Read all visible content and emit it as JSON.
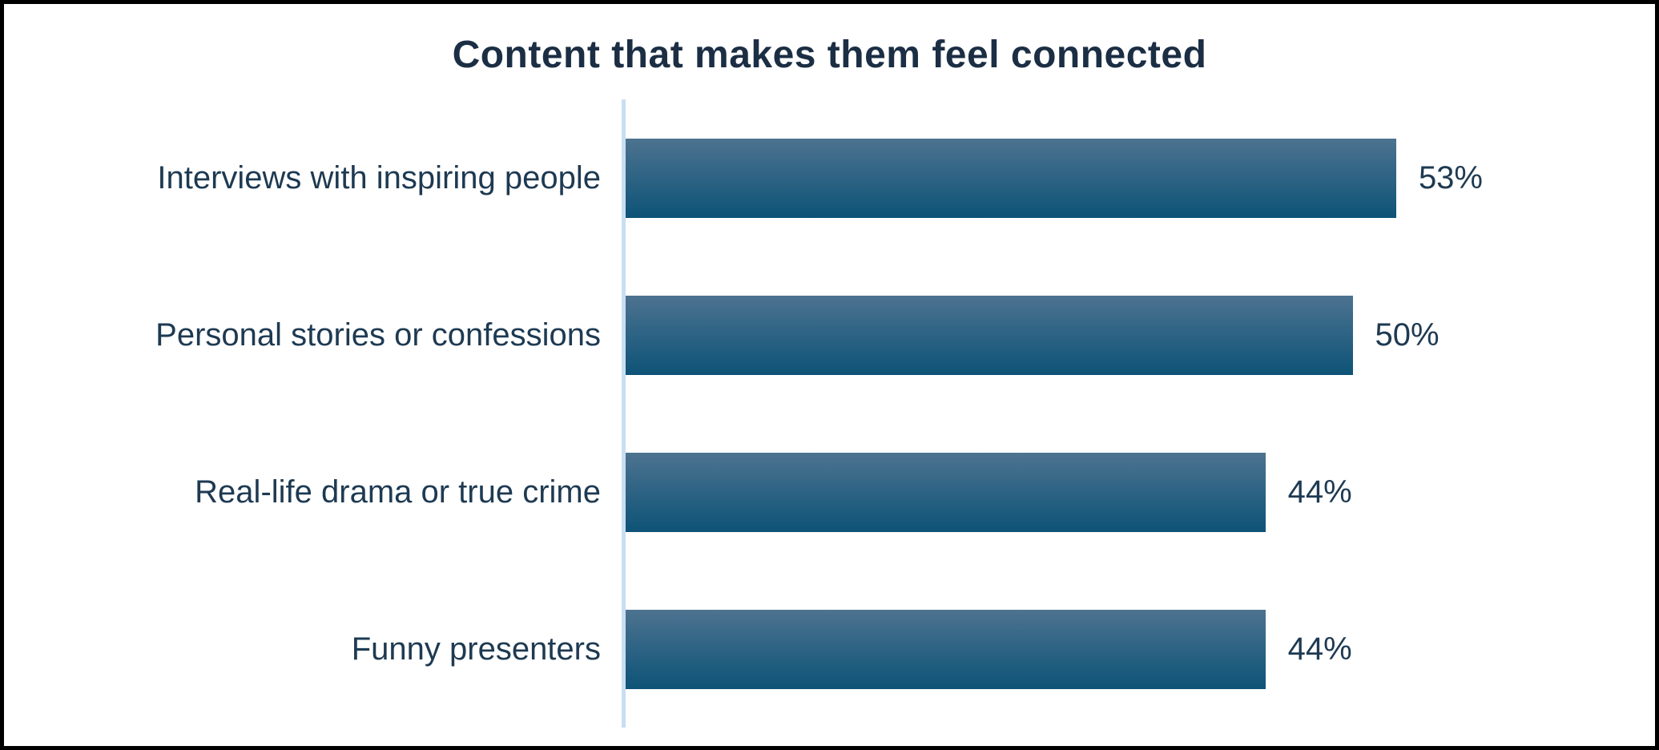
{
  "title": "Content that makes them feel connected",
  "colors": {
    "background": "#ffffff",
    "border": "#000000",
    "title_text": "#1b2e44",
    "label_text": "#1e3a52",
    "axis_line": "#c9def3",
    "bar_gradient_top": "#4d7390",
    "bar_gradient_bottom": "#0d5377"
  },
  "chart_data": {
    "type": "bar",
    "orientation": "horizontal",
    "title": "Content that makes them feel connected",
    "categories": [
      "Interviews with inspiring people",
      "Personal stories or confessions",
      "Real-life drama or true crime",
      "Funny presenters"
    ],
    "values": [
      53,
      50,
      44,
      44
    ],
    "value_labels": [
      "53%",
      "50%",
      "44%",
      "44%"
    ],
    "unit": "%",
    "grid": false,
    "legend": false,
    "value_labels_shown": true,
    "axis_ticks_shown": false
  }
}
